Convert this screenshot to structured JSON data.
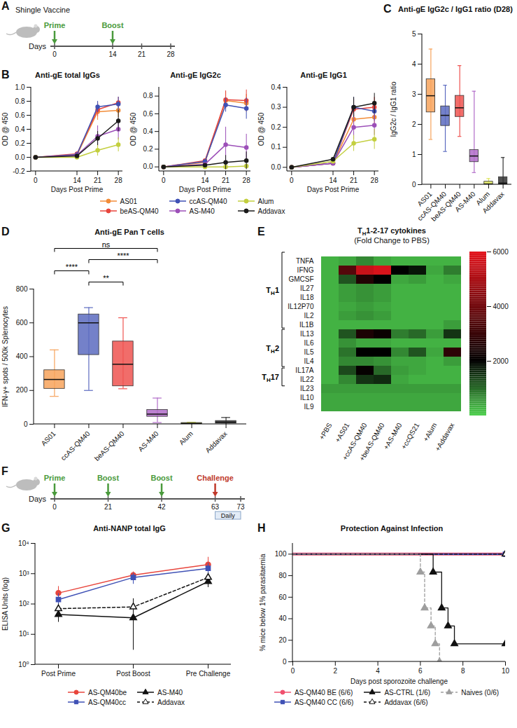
{
  "chart_data": [
    {
      "panel": "B",
      "type": "line",
      "title": "Anti-gE total IgGs",
      "xlabel": "Days Post Prime",
      "ylabel": "OD @ 450",
      "x": [
        0,
        14,
        21,
        28
      ],
      "xlim": [
        -1.5,
        29.5
      ],
      "xticks": [
        0,
        14,
        21,
        28
      ],
      "ylim": [
        -0.2,
        1.0
      ],
      "yticks": [
        -0.2,
        {
          "value": 0,
          "label": "0.0"
        },
        0.2,
        0.4,
        0.6,
        0.8,
        {
          "value": 1,
          "label": "1.0"
        }
      ],
      "legend": "bottom",
      "series": [
        {
          "name": "AS01",
          "color": "#f28c38",
          "values": [
            0,
            0.03,
            0.65,
            0.67
          ],
          "errors": [
            0.01,
            0.02,
            0.12,
            0.1
          ]
        },
        {
          "name": "beAS-QM40",
          "color": "#e8453c",
          "values": [
            0,
            0.05,
            0.68,
            0.78
          ],
          "errors": [
            0.01,
            0.03,
            0.1,
            0.08
          ]
        },
        {
          "name": "ccAS-QM40",
          "color": "#3f51b5",
          "values": [
            0,
            0.04,
            0.72,
            0.76
          ],
          "errors": [
            0.01,
            0.02,
            0.08,
            0.1
          ]
        },
        {
          "name": "AS-M40",
          "color": "#9c4fb8",
          "values": [
            0,
            0.03,
            0.3,
            0.4
          ],
          "errors": [
            0.01,
            0.02,
            0.15,
            0.15
          ]
        },
        {
          "name": "Alum",
          "color": "#c3cf3f",
          "values": [
            0,
            0,
            0.1,
            0.18
          ],
          "errors": [
            0.01,
            0.02,
            0.08,
            0.1
          ]
        },
        {
          "name": "Addavax",
          "color": "#1a1a1a",
          "values": [
            0,
            0.02,
            0.27,
            0.52
          ],
          "errors": [
            0.01,
            0.02,
            0.1,
            0.15
          ]
        }
      ]
    },
    {
      "type": "line",
      "title": "Anti-gE IgG2c",
      "xlabel": "Days Post Prime",
      "ylabel": "OD @ 450",
      "x": [
        0,
        14,
        21,
        28
      ],
      "xlim": [
        -1.5,
        29.5
      ],
      "xticks": [
        0,
        14,
        21,
        28
      ],
      "ylim": [
        -0.05,
        0.9
      ],
      "yticks": [
        {
          "value": 0,
          "label": "0.0"
        },
        0.2,
        0.4,
        0.6,
        0.8
      ],
      "series": [
        {
          "name": "AS01",
          "color": "#f28c38",
          "values": [
            0,
            0.05,
            0.75,
            0.72
          ],
          "errors": [
            0.01,
            0.02,
            0.1,
            0.1
          ]
        },
        {
          "name": "beAS-QM40",
          "color": "#e8453c",
          "values": [
            0,
            0.07,
            0.76,
            0.75
          ],
          "errors": [
            0.01,
            0.02,
            0.1,
            0.12
          ]
        },
        {
          "name": "ccAS-QM40",
          "color": "#3f51b5",
          "values": [
            0,
            0.06,
            0.7,
            0.66
          ],
          "errors": [
            0.01,
            0.02,
            0.08,
            0.12
          ]
        },
        {
          "name": "AS-M40",
          "color": "#9c4fb8",
          "values": [
            0,
            0.03,
            0.25,
            0.22
          ],
          "errors": [
            0.01,
            0.01,
            0.2,
            0.15
          ]
        },
        {
          "name": "Alum",
          "color": "#c3cf3f",
          "values": [
            0,
            0,
            0,
            0.01
          ],
          "errors": [
            0.01,
            0.01,
            0.01,
            0.01
          ]
        },
        {
          "name": "Addavax",
          "color": "#1a1a1a",
          "values": [
            0,
            0.02,
            0.05,
            0.07
          ],
          "errors": [
            0.01,
            0.01,
            0.08,
            0.1
          ]
        }
      ]
    },
    {
      "type": "line",
      "title": "Anti-gE IgG1",
      "xlabel": "Days Post Prime",
      "ylabel": "OD @ 450",
      "x": [
        0,
        14,
        21,
        28
      ],
      "xlim": [
        -1.5,
        29.5
      ],
      "xticks": [
        0,
        14,
        21,
        28
      ],
      "ylim": [
        -0.02,
        0.4
      ],
      "yticks": [
        {
          "value": 0,
          "label": "0.0"
        },
        0.1,
        0.2,
        0.3,
        0.4
      ],
      "series": [
        {
          "name": "AS01",
          "color": "#f28c38",
          "values": [
            0,
            0.02,
            0.24,
            0.25
          ],
          "errors": [
            0.005,
            0.01,
            0.04,
            0.04
          ]
        },
        {
          "name": "beAS-QM40",
          "color": "#e8453c",
          "values": [
            0,
            0.02,
            0.29,
            0.3
          ],
          "errors": [
            0.005,
            0.01,
            0.05,
            0.05
          ]
        },
        {
          "name": "ccAS-QM40",
          "color": "#3f51b5",
          "values": [
            0,
            0.02,
            0.3,
            0.28
          ],
          "errors": [
            0.005,
            0.01,
            0.05,
            0.05
          ]
        },
        {
          "name": "AS-M40",
          "color": "#9c4fb8",
          "values": [
            0,
            0.02,
            0.2,
            0.21
          ],
          "errors": [
            0.005,
            0.01,
            0.06,
            0.05
          ]
        },
        {
          "name": "Alum",
          "color": "#c3cf3f",
          "values": [
            0,
            0.03,
            0.12,
            0.14
          ],
          "errors": [
            0.005,
            0.01,
            0.04,
            0.05
          ]
        },
        {
          "name": "Addavax",
          "color": "#1a1a1a",
          "values": [
            0,
            0.04,
            0.3,
            0.32
          ],
          "errors": [
            0.005,
            0.01,
            0.05,
            0.05
          ]
        }
      ]
    },
    {
      "panel": "C",
      "type": "box",
      "title": "Anti-gE IgG2c / IgG1 ratio (D28)",
      "ylabel": "IgG2c / IgG1 ratio",
      "categories": [
        "AS01",
        "ccAS-QM40",
        "beAS-QM40",
        "AS-M40",
        "Alum",
        "Addavax"
      ],
      "colors": [
        "#f7a35c",
        "#5c6bc0",
        "#ef5350",
        "#b26cc9",
        "#dce35b",
        "#333333"
      ],
      "values": [
        [
          1.5,
          2.4,
          2.95,
          3.5,
          4.5
        ],
        [
          1.1,
          1.95,
          2.3,
          2.6,
          3.3
        ],
        [
          1.6,
          2.25,
          2.55,
          2.95,
          3.95
        ],
        [
          0.4,
          0.75,
          0.95,
          1.15,
          3.1
        ],
        [
          0,
          0,
          0.02,
          0.1,
          0.2
        ],
        [
          0,
          0,
          0.05,
          0.25,
          0.9
        ]
      ],
      "ylim": [
        0,
        5
      ],
      "yticks": [
        0,
        1,
        2,
        3,
        4,
        5
      ]
    },
    {
      "panel": "D",
      "type": "box",
      "title": "Anti-gE Pan T cells",
      "ylabel": "IFN-γ+ spots / 500k Splenocytes",
      "categories": [
        "AS01",
        "ccAS-QM40",
        "beAS-QM40",
        "AS-M40",
        "Alum",
        "Addavax"
      ],
      "colors": [
        "#f7a35c",
        "#5c6bc0",
        "#ef5350",
        "#b26cc9",
        "#dce35b",
        "#333333"
      ],
      "values": [
        [
          165,
          210,
          265,
          320,
          440
        ],
        [
          200,
          410,
          600,
          650,
          690
        ],
        [
          210,
          225,
          355,
          490,
          630
        ],
        [
          10,
          45,
          60,
          85,
          155
        ],
        [
          0,
          2,
          5,
          8,
          12
        ],
        [
          0,
          5,
          12,
          20,
          40
        ]
      ],
      "ylim": [
        0,
        800
      ],
      "yticks": [
        0,
        200,
        400,
        600,
        800
      ],
      "annotations": [
        {
          "from": "ccAS-QM40",
          "to": "beAS-QM40",
          "label": "**"
        },
        {
          "from": "AS01",
          "to": "ccAS-QM40",
          "label": "****"
        },
        {
          "from": "ccAS-QM40",
          "to": "AS-M40",
          "label": "****"
        },
        {
          "from": "AS01",
          "to": "AS-M40",
          "label": "ns"
        }
      ]
    },
    {
      "panel": "E",
      "type": "heatmap",
      "title": "TH1-2-17 cytokines",
      "subtitle": "(Fold Change to PBS)",
      "columns": [
        "+PBS",
        "+AS01",
        "+ccAS-QM40",
        "+beAS-QM40",
        "+AS-M40",
        "+ccQS21",
        "+Alum",
        "+Addavax"
      ],
      "rows": [
        "TNFA",
        "IFNG",
        "GMCSF",
        "IL27",
        "IL18",
        "IL12P70",
        "IL2",
        "IL1B",
        "IL13",
        "IL6",
        "IL5",
        "IL4",
        "IL17A",
        "IL22",
        "IL23",
        "IL10",
        "IL9"
      ],
      "values": [
        [
          300,
          400,
          700,
          400,
          300,
          300,
          300,
          300
        ],
        [
          300,
          3500,
          5500,
          5800,
          2000,
          1800,
          400,
          800
        ],
        [
          300,
          1200,
          2600,
          2000,
          400,
          500,
          300,
          400
        ],
        [
          300,
          500,
          600,
          500,
          300,
          300,
          300,
          300
        ],
        [
          300,
          500,
          600,
          500,
          300,
          300,
          300,
          300
        ],
        [
          300,
          400,
          500,
          400,
          300,
          300,
          300,
          300
        ],
        [
          300,
          500,
          600,
          500,
          300,
          300,
          300,
          300
        ],
        [
          300,
          300,
          300,
          300,
          300,
          300,
          300,
          500
        ],
        [
          300,
          1200,
          2500,
          2200,
          800,
          1000,
          500,
          1500
        ],
        [
          300,
          600,
          400,
          400,
          300,
          300,
          300,
          300
        ],
        [
          300,
          900,
          2000,
          2000,
          700,
          1200,
          400,
          2800
        ],
        [
          300,
          700,
          700,
          600,
          400,
          400,
          300,
          500
        ],
        [
          300,
          1300,
          2100,
          1000,
          500,
          400,
          300,
          300
        ],
        [
          300,
          700,
          1500,
          1600,
          400,
          300,
          300,
          300
        ],
        [
          500,
          500,
          500,
          500,
          500,
          500,
          500,
          500
        ],
        [
          400,
          400,
          400,
          400,
          400,
          400,
          400,
          400
        ],
        [
          400,
          400,
          400,
          400,
          400,
          400,
          400,
          400
        ]
      ],
      "groups": [
        {
          "label": "TH1",
          "rows": [
            "TNFA",
            "IFNG",
            "GMCSF",
            "IL27",
            "IL18",
            "IL12P70",
            "IL2",
            "IL1B"
          ]
        },
        {
          "label": "TH2",
          "rows": [
            "IL13",
            "IL6",
            "IL5",
            "IL4"
          ]
        },
        {
          "label": "TH17",
          "rows": [
            "IL17A",
            "IL22"
          ]
        }
      ],
      "colorbar": {
        "range": [
          0,
          6000
        ],
        "ticks": [
          2000,
          4000,
          6000
        ],
        "stops": [
          0,
          2000,
          6000
        ]
      }
    },
    {
      "panel": "G",
      "type": "line",
      "title": "Anti-NANP total IgG",
      "ylabel": "ELISA Units (log)",
      "categories": [
        "Post Prime",
        "Post Boost",
        "Pre Challenge"
      ],
      "log": "y",
      "ylim": [
        1,
        10000
      ],
      "yticks": [
        {
          "value": 1,
          "label": "10⁰"
        },
        {
          "value": 10,
          "label": "10¹"
        },
        {
          "value": 100,
          "label": "10²"
        },
        {
          "value": 1000,
          "label": "10³"
        },
        {
          "value": 10000,
          "label": "10⁴"
        }
      ],
      "legend": "bottom",
      "series": [
        {
          "name": "AS-QM40be",
          "color": "#e8453c",
          "marker": "circle",
          "values": [
            230,
            900,
            2000
          ],
          "errors": [
            150,
            250,
            1500
          ]
        },
        {
          "name": "AS-QM40cc",
          "color": "#3f51b5",
          "marker": "square",
          "values": [
            140,
            750,
            1500
          ],
          "errors": [
            80,
            300,
            700
          ]
        },
        {
          "name": "AS-M40",
          "color": "#111111",
          "marker": "triangle",
          "values": [
            45,
            35,
            550
          ],
          "errors": [
            20,
            32,
            200
          ]
        },
        {
          "name": "Addavax",
          "color": "#111111",
          "marker": "triangle-open",
          "line_style": "dashed",
          "values": [
            70,
            80,
            750
          ],
          "errors": [
            30,
            70,
            300
          ]
        }
      ]
    },
    {
      "panel": "H",
      "type": "step",
      "title": "Protection Against Infection",
      "xlabel": "Days post sporozoite challenge",
      "ylabel": "% mice below 1% parasitaemia",
      "xlim": [
        0,
        10
      ],
      "xticks": [
        0,
        2,
        4,
        6,
        8,
        10
      ],
      "ylim": [
        0,
        110
      ],
      "yticks": [
        0,
        20,
        40,
        60,
        80,
        100
      ],
      "legend": "bottom",
      "series": [
        {
          "name": "AS-QM40 BE (6/6)",
          "color": "#f0506e",
          "marker": "circle",
          "x": [
            0,
            10
          ],
          "values": [
            100,
            100
          ]
        },
        {
          "name": "AS-QM40 CC (6/6)",
          "color": "#3f51b5",
          "marker": "square",
          "x": [
            0,
            10
          ],
          "values": [
            100,
            100
          ]
        },
        {
          "name": "AS-CTRL (1/6)",
          "color": "#111111",
          "marker": "triangle",
          "x": [
            0,
            6.6,
            7.0,
            7.3,
            7.6,
            10
          ],
          "values": [
            100,
            83.3,
            50,
            33.3,
            16.7,
            16.7
          ]
        },
        {
          "name": "Addavax (6/6)",
          "color": "#111111",
          "marker": "triangle-open",
          "line_style": "dashed",
          "x": [
            0,
            10
          ],
          "values": [
            100,
            100
          ]
        },
        {
          "name": "Naives (0/6)",
          "color": "#9e9e9e",
          "marker": "triangle",
          "line_style": "dashed",
          "x": [
            0,
            6.0,
            6.2,
            6.5,
            6.7,
            6.9
          ],
          "values": [
            100,
            83.3,
            50,
            33.3,
            16.7,
            0
          ]
        }
      ]
    }
  ],
  "diagrams": [
    {
      "panel": "A",
      "title": "Shingle Vaccine",
      "axis_label": "Days",
      "ticks": [
        0,
        14,
        21,
        28
      ],
      "events": [
        {
          "day": 0,
          "label": "Prime",
          "color": "#4a9a3c"
        },
        {
          "day": 14,
          "label": "Boost",
          "color": "#4a9a3c"
        }
      ]
    },
    {
      "panel": "F",
      "axis_label": "Days",
      "ticks": [
        0,
        21,
        42,
        63,
        73
      ],
      "events": [
        {
          "day": 0,
          "label": "Prime",
          "color": "#4a9a3c"
        },
        {
          "day": 21,
          "label": "Boost",
          "color": "#4a9a3c"
        },
        {
          "day": 42,
          "label": "Boost",
          "color": "#4a9a3c"
        },
        {
          "day": 63,
          "label": "Challenge",
          "color": "#c0392b"
        }
      ],
      "annotations": [
        {
          "from": 63,
          "to": 73,
          "label": "Daily"
        }
      ]
    }
  ]
}
